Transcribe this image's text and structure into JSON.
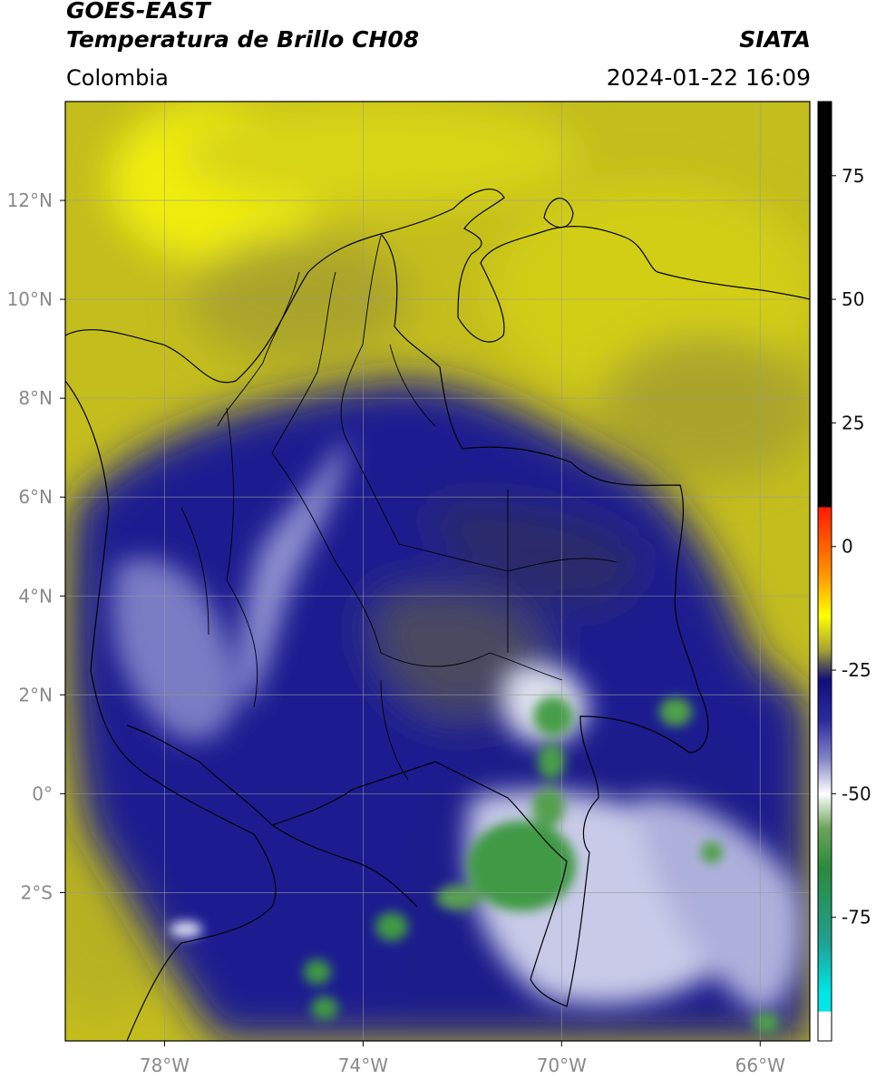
{
  "header": {
    "satellite": "GOES-EAST",
    "product": "Temperatura de Brillo CH08",
    "brand": "SIATA",
    "region": "Colombia",
    "timestamp": "2024-01-22 16:09"
  },
  "map": {
    "extent": {
      "lon": [
        -80.0,
        -65.0
      ],
      "lat": [
        -5.0,
        14.0
      ]
    },
    "lon_ticks": [
      {
        "value": -78,
        "label": "78°W"
      },
      {
        "value": -74,
        "label": "74°W"
      },
      {
        "value": -70,
        "label": "70°W"
      },
      {
        "value": -66,
        "label": "66°W"
      }
    ],
    "lat_ticks": [
      {
        "value": 12,
        "label": "12°N"
      },
      {
        "value": 10,
        "label": "10°N"
      },
      {
        "value": 8,
        "label": "8°N"
      },
      {
        "value": 6,
        "label": "6°N"
      },
      {
        "value": 4,
        "label": "4°N"
      },
      {
        "value": 2,
        "label": "2°N"
      },
      {
        "value": 0,
        "label": "0°"
      },
      {
        "value": -2,
        "label": "2°S"
      }
    ],
    "grid": true,
    "colors": {
      "warm_yellow": "#c9c31a",
      "bright_yellow": "#f2f000",
      "olive": "#a8a22a",
      "navy": "#1c1a8c",
      "deep_navy": "#151477",
      "cold_white": "#e6e8f4",
      "cold_green": "#3f9a45"
    }
  },
  "colorbar": {
    "range": [
      -100,
      90
    ],
    "ticks": [
      {
        "value": 75,
        "label": "75"
      },
      {
        "value": 50,
        "label": "50"
      },
      {
        "value": 25,
        "label": "25"
      },
      {
        "value": 0,
        "label": "0"
      },
      {
        "value": -25,
        "label": "-25"
      },
      {
        "value": -50,
        "label": "-50"
      },
      {
        "value": -75,
        "label": "-75"
      }
    ],
    "stops": [
      {
        "value": 90,
        "color": "#000000"
      },
      {
        "value": 8,
        "color": "#000000"
      },
      {
        "value": 7.9,
        "color": "#ff1a00"
      },
      {
        "value": -6,
        "color": "#ff9900"
      },
      {
        "value": -14,
        "color": "#ffff00"
      },
      {
        "value": -21,
        "color": "#a5a232"
      },
      {
        "value": -24,
        "color": "#555555"
      },
      {
        "value": -27,
        "color": "#10107a"
      },
      {
        "value": -35,
        "color": "#2a2aa0"
      },
      {
        "value": -43,
        "color": "#8484c8"
      },
      {
        "value": -50,
        "color": "#ffffff"
      },
      {
        "value": -57,
        "color": "#6ba35a"
      },
      {
        "value": -65,
        "color": "#2b8a3c"
      },
      {
        "value": -80,
        "color": "#20a090"
      },
      {
        "value": -90,
        "color": "#00e5e5"
      },
      {
        "value": -94,
        "color": "#00e5e5"
      },
      {
        "value": -94.1,
        "color": "#ffffff"
      },
      {
        "value": -100,
        "color": "#ffffff"
      }
    ]
  }
}
